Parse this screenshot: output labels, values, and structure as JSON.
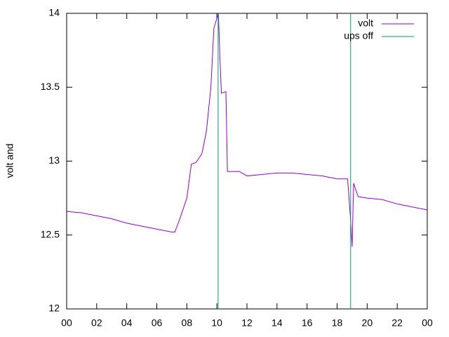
{
  "chart_data": {
    "type": "line",
    "ylabel": "volt and",
    "xlim": [
      0,
      24
    ],
    "xticks": [
      {
        "value": 0,
        "label": "00"
      },
      {
        "value": 2,
        "label": "02"
      },
      {
        "value": 4,
        "label": "04"
      },
      {
        "value": 6,
        "label": "06"
      },
      {
        "value": 8,
        "label": "08"
      },
      10,
      12,
      14,
      16,
      18,
      20,
      22,
      {
        "value": 24,
        "label": "00"
      }
    ],
    "ylim": [
      12,
      14
    ],
    "yticks": [
      12,
      12.5,
      13,
      13.5,
      14
    ],
    "legend": "top-right",
    "series": [
      {
        "name": "volt",
        "color": "#9400d3",
        "x": [
          0,
          1,
          2,
          3,
          4,
          5,
          6,
          7,
          7.2,
          7.5,
          8,
          8.3,
          8.6,
          9,
          9.3,
          9.6,
          9.8,
          10.1,
          10.2,
          10.3,
          10.6,
          10.7,
          11.5,
          12,
          13,
          14,
          15,
          16,
          17,
          18,
          18.7,
          18.9,
          19.0,
          19.1,
          19.4,
          20,
          21,
          22,
          23,
          24
        ],
        "values": [
          12.66,
          12.65,
          12.63,
          12.61,
          12.58,
          12.56,
          12.54,
          12.52,
          12.52,
          12.6,
          12.75,
          12.98,
          12.99,
          13.05,
          13.2,
          13.5,
          13.9,
          14.0,
          13.7,
          13.46,
          13.47,
          12.93,
          12.93,
          12.9,
          12.91,
          12.92,
          12.92,
          12.91,
          12.9,
          12.88,
          12.88,
          12.6,
          12.42,
          12.85,
          12.76,
          12.75,
          12.74,
          12.71,
          12.69,
          12.67
        ]
      },
      {
        "name": "ups off",
        "color": "#009e73",
        "x": [
          10.08,
          10.08,
          10.08,
          18.9,
          18.9
        ],
        "values": [
          12,
          14,
          null,
          12,
          14
        ]
      }
    ]
  }
}
